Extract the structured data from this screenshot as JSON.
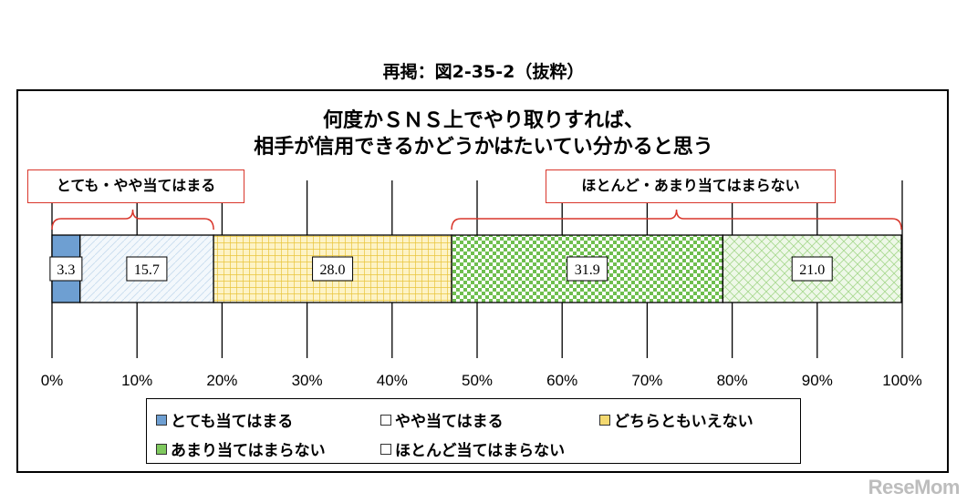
{
  "header": {
    "caption": "再掲：図2-35-2（抜粋）",
    "title_line1": "何度かＳＮＳ上でやり取りすれば、",
    "title_line2": "相手が信用できるかどうかはたいてい分かると思う"
  },
  "annotations": {
    "agree": "とても・やや当てはまる",
    "disagree": "ほとんど・あまり当てはまらない"
  },
  "chart_data": {
    "type": "bar",
    "orientation": "horizontal",
    "stacked": true,
    "categories": [
      "とても当てはまる",
      "やや当てはまる",
      "どちらともいえない",
      "あまり当てはまらない",
      "ほとんど当てはまらない"
    ],
    "values": [
      3.3,
      15.7,
      28.0,
      31.9,
      21.0
    ],
    "value_labels": [
      "3.3",
      "15.7",
      "28.0",
      "31.9",
      "21.0"
    ],
    "colors": [
      "#6e9fd2",
      "#eaf3fb",
      "#f4d970",
      "#7fc95e",
      "#c9e8b8"
    ],
    "xlim": [
      0,
      100
    ],
    "ticks": [
      "0%",
      "10%",
      "20%",
      "30%",
      "40%",
      "50%",
      "60%",
      "70%",
      "80%",
      "90%",
      "100%"
    ],
    "legend_position": "bottom",
    "grid": true
  },
  "legend": {
    "items": [
      "とても当てはまる",
      "やや当てはまる",
      "どちらともいえない",
      "あまり当てはまらない",
      "ほとんど当てはまらない"
    ]
  },
  "watermark": "ReseMom"
}
